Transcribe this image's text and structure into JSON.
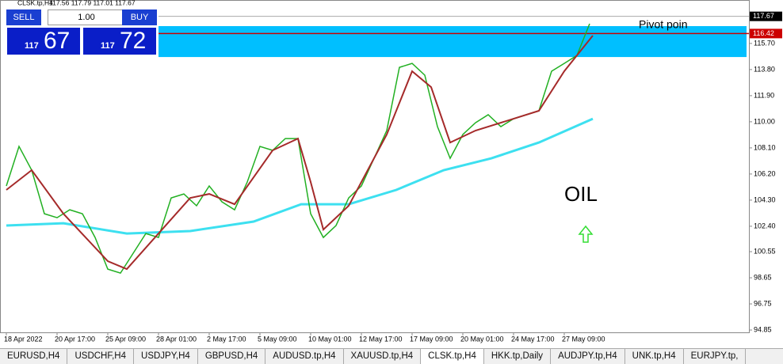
{
  "header": {
    "symbol": "CLSK.tp,H4",
    "ohlc": "117.56 117.79 117.01 117.67"
  },
  "trade_panel": {
    "sell": "SELL",
    "buy": "BUY",
    "volume": "1.00",
    "bid_big": "117",
    "bid_small": "67",
    "ask_big": "117",
    "ask_small": "72"
  },
  "chart": {
    "ylim": [
      94.68,
      118.86
    ],
    "xlim": [
      -2,
      234.25
    ],
    "yticks": [
      94.85,
      96.75,
      98.65,
      100.55,
      {
        "value": 102.4,
        "label": "102.40"
      },
      {
        "value": 104.3,
        "label": "104.30"
      },
      {
        "value": 106.2,
        "label": "106.20"
      },
      {
        "value": 108.1,
        "label": "108.10"
      },
      {
        "value": 110,
        "label": "110.00"
      },
      {
        "value": 111.9,
        "label": "111.90"
      },
      {
        "value": 113.8,
        "label": "113.80"
      },
      {
        "value": 115.7,
        "label": "115.70"
      }
    ],
    "current_price": 117.67,
    "level_line": 116.42,
    "level_color": "#cc0000",
    "zone": [
      114.71,
      116.96
    ],
    "zone_color": "#00bfff",
    "xticks": [
      {
        "value": 0,
        "label": "18 Apr 2022"
      },
      {
        "value": 16,
        "label": "20 Apr 17:00"
      },
      {
        "value": 32,
        "label": "25 Apr 09:00"
      },
      {
        "value": 48,
        "label": "28 Apr 01:00"
      },
      {
        "value": 64,
        "label": "2 May 17:00"
      },
      {
        "value": 80,
        "label": "5 May 09:00"
      },
      {
        "value": 96,
        "label": "10 May 01:00"
      },
      {
        "value": 112,
        "label": "12 May 17:00"
      },
      {
        "value": 128,
        "label": "17 May 09:00"
      },
      {
        "value": 144,
        "label": "20 May 01:00"
      },
      {
        "value": 160,
        "label": "24 May 17:00"
      },
      {
        "value": 176,
        "label": "27 May 09:00"
      }
    ],
    "price": {
      "color": "#22b022",
      "x": [
        0,
        4,
        8,
        12,
        16,
        20,
        24,
        28,
        32,
        36,
        40,
        44,
        48,
        52,
        56,
        60,
        64,
        68,
        72,
        76,
        80,
        84,
        88,
        92,
        96,
        100,
        104,
        108,
        112,
        116,
        120,
        124,
        128,
        132,
        136,
        140,
        144,
        148,
        152,
        156,
        160,
        164,
        168,
        172,
        176,
        180,
        184
      ],
      "values": [
        105.33,
        108.21,
        106.48,
        103.31,
        103.02,
        103.6,
        103.31,
        101.58,
        99.28,
        98.99,
        100.43,
        101.87,
        101.58,
        104.46,
        104.75,
        103.89,
        105.33,
        104.18,
        103.6,
        105.62,
        108.21,
        107.92,
        108.78,
        108.78,
        103.31,
        101.58,
        102.45,
        104.46,
        105.33,
        107.34,
        109.36,
        113.96,
        114.25,
        113.39,
        109.65,
        107.34,
        109.07,
        109.93,
        110.51,
        109.65,
        110.22,
        110.51,
        110.8,
        113.68,
        114.25,
        114.83,
        117.13
      ]
    },
    "ma_fast": {
      "color": "#a52a2a",
      "x": [
        0,
        8,
        18,
        32,
        38,
        48,
        58,
        64,
        72,
        84,
        92,
        96,
        100,
        108,
        120,
        128,
        134,
        140,
        148,
        160,
        168,
        176,
        185
      ],
      "values": [
        105.04,
        106.48,
        103.31,
        99.86,
        99.28,
        101.87,
        104.46,
        104.75,
        104.0,
        107.92,
        108.78,
        105.62,
        102.16,
        103.89,
        109.07,
        113.68,
        112.52,
        108.49,
        109.36,
        110.22,
        110.8,
        113.68,
        116.27
      ]
    },
    "ma_slow": {
      "color": "#3de0f0",
      "x": [
        0,
        18,
        38,
        58,
        78,
        93,
        108,
        123,
        138,
        153,
        168,
        185
      ],
      "values": [
        102.45,
        102.62,
        101.87,
        102.05,
        102.74,
        104.0,
        104.0,
        105.04,
        106.48,
        107.34,
        108.49,
        110.22
      ]
    },
    "annotations": {
      "pivot": "Pivot poin",
      "oil": "OIL"
    }
  },
  "tabs": [
    "EURUSD,H4",
    "USDCHF,H4",
    "USDJPY,H4",
    "GBPUSD,H4",
    "AUDUSD.tp,H4",
    "XAUUSD.tp,H4",
    "CLSK.tp,H4",
    "HKK.tp,Daily",
    "AUDJPY.tp,H4",
    "UNK.tp,H4",
    "EURJPY.tp,"
  ],
  "active_tab": 6
}
